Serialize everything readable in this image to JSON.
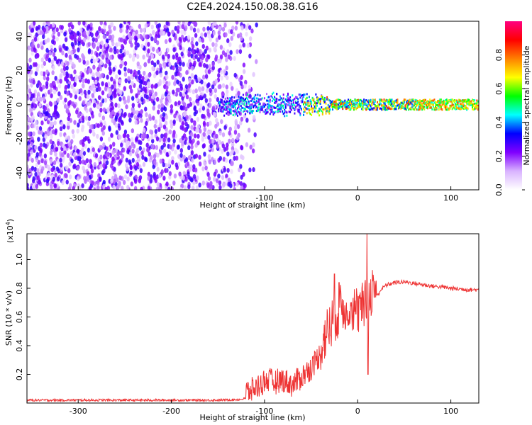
{
  "title": "C2E4.2024.150.08.38.G16",
  "chart_data": [
    {
      "type": "heatmap",
      "xlabel": "Height of straight line (km)",
      "ylabel": "Frequency (Hz)",
      "xlim": [
        -355,
        130
      ],
      "ylim": [
        -50,
        49
      ],
      "xticks": [
        -300,
        -200,
        -100,
        0,
        100
      ],
      "yticks": [
        -40,
        -20,
        0,
        20,
        40
      ],
      "colorbar": {
        "label": "Normalized spectral amplitude",
        "range": [
          0,
          1
        ],
        "ticks": [
          0.0,
          0.2,
          0.4,
          0.6,
          0.8
        ],
        "colors": [
          "#ffffff",
          "#d9b3ff",
          "#8000ff",
          "#0000ff",
          "#00ffff",
          "#00ff00",
          "#ffff00",
          "#ff8000",
          "#ff0000",
          "#ff0080"
        ]
      },
      "description_regions": {
        "noise_region_x": [
          -355,
          -125
        ],
        "signal_line_freq": 0,
        "signal_line_x": [
          -150,
          130
        ]
      }
    },
    {
      "type": "line",
      "xlabel": "Height of straight line (km)",
      "ylabel": "SNR (10 * v/v)",
      "y_multiplier": "(x10",
      "y_multiplier_exp": "4",
      "y_multiplier_close": ")",
      "xlim": [
        -355,
        130
      ],
      "ylim": [
        0,
        1.18
      ],
      "xticks": [
        -300,
        -200,
        -100,
        0,
        100
      ],
      "yticks": [
        0.2,
        0.4,
        0.6,
        0.8,
        1.0
      ],
      "series_color": "#ee3333",
      "points": [
        [
          -355,
          0.02
        ],
        [
          -300,
          0.02
        ],
        [
          -250,
          0.02
        ],
        [
          -200,
          0.02
        ],
        [
          -150,
          0.02
        ],
        [
          -125,
          0.025
        ],
        [
          -115,
          0.04
        ],
        [
          -105,
          0.08
        ],
        [
          -98,
          0.12
        ],
        [
          -90,
          0.1
        ],
        [
          -80,
          0.12
        ],
        [
          -70,
          0.08
        ],
        [
          -60,
          0.14
        ],
        [
          -50,
          0.2
        ],
        [
          -40,
          0.3
        ],
        [
          -30,
          0.45
        ],
        [
          -20,
          0.55
        ],
        [
          -10,
          0.6
        ],
        [
          -5,
          0.58
        ],
        [
          0,
          0.55
        ],
        [
          5,
          0.58
        ],
        [
          10,
          0.6
        ],
        [
          15,
          0.7
        ],
        [
          20,
          0.74
        ],
        [
          25,
          0.79
        ],
        [
          30,
          0.82
        ],
        [
          40,
          0.84
        ],
        [
          50,
          0.845
        ],
        [
          60,
          0.835
        ],
        [
          70,
          0.825
        ],
        [
          80,
          0.815
        ],
        [
          90,
          0.81
        ],
        [
          100,
          0.8
        ],
        [
          110,
          0.795
        ],
        [
          120,
          0.79
        ],
        [
          130,
          0.79
        ]
      ],
      "spikes": [
        [
          -25,
          0.9
        ],
        [
          -20,
          0.84
        ],
        [
          -12,
          0.7
        ],
        [
          -2,
          0.62
        ],
        [
          10,
          1.18
        ],
        [
          11,
          0.2
        ]
      ]
    }
  ]
}
